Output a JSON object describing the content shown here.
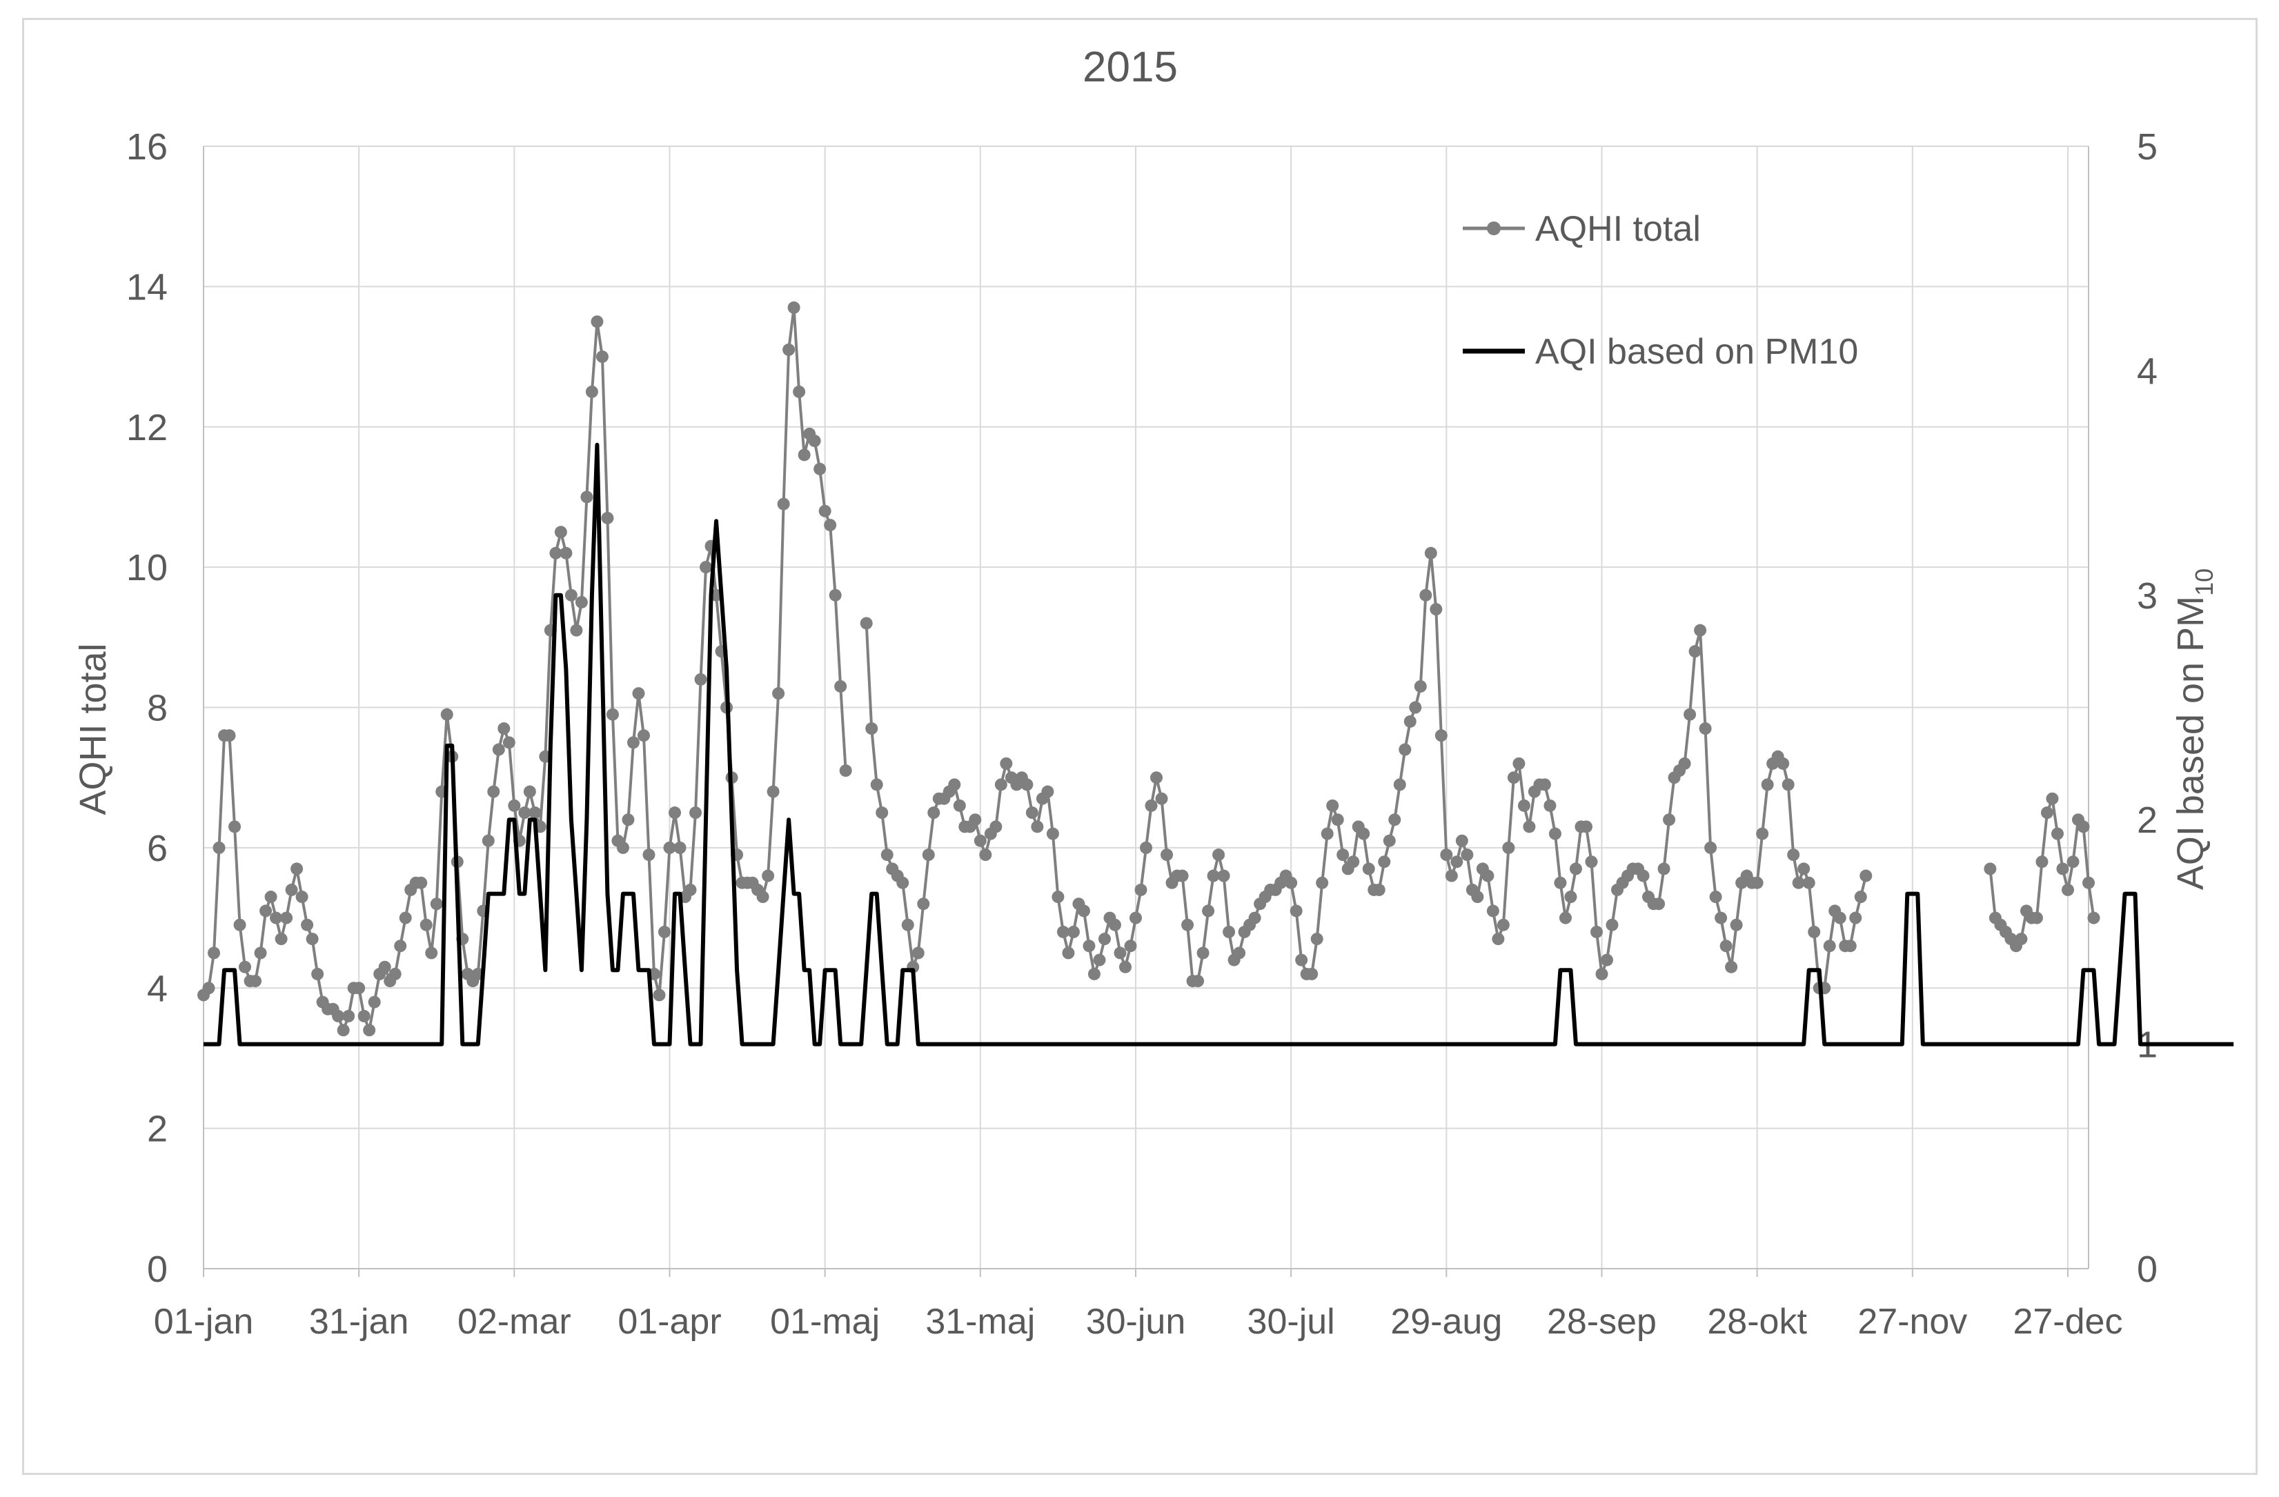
{
  "chart_data": {
    "type": "line",
    "title": "2015",
    "year": 2015,
    "x_tick_labels": [
      "01-jan",
      "31-jan",
      "02-mar",
      "01-apr",
      "01-maj",
      "31-maj",
      "30-jun",
      "30-jul",
      "29-aug",
      "28-sep",
      "28-okt",
      "27-nov",
      "27-dec"
    ],
    "x_tick_days": [
      0,
      30,
      60,
      90,
      120,
      150,
      180,
      210,
      240,
      270,
      300,
      330,
      360
    ],
    "xlim": [
      0,
      364
    ],
    "ylabel": "AQHI total",
    "ylim": [
      0,
      16
    ],
    "y_ticks": [
      0,
      2,
      4,
      6,
      8,
      10,
      12,
      14,
      16
    ],
    "y2label_main": "AQI based on PM",
    "y2label_sub": "10",
    "y2lim": [
      0,
      5
    ],
    "y2_ticks": [
      0,
      1,
      2,
      3,
      4,
      5
    ],
    "grid": true,
    "legend_position": "top-right",
    "series": [
      {
        "name": "AQHI total",
        "axis": "left",
        "color": "#7f7f7f",
        "marker": "circle",
        "x_day_start": 0,
        "values": [
          3.9,
          4.0,
          4.5,
          6.0,
          7.6,
          7.6,
          6.3,
          4.9,
          4.3,
          4.1,
          4.1,
          4.5,
          5.1,
          5.3,
          5.0,
          4.7,
          5.0,
          5.4,
          5.7,
          5.3,
          4.9,
          4.7,
          4.2,
          3.8,
          3.7,
          3.7,
          3.6,
          3.4,
          3.6,
          4.0,
          4.0,
          3.6,
          3.4,
          3.8,
          4.2,
          4.3,
          4.1,
          4.2,
          4.6,
          5.0,
          5.4,
          5.5,
          5.5,
          4.9,
          4.5,
          5.2,
          6.8,
          7.9,
          7.3,
          5.8,
          4.7,
          4.2,
          4.1,
          4.2,
          5.1,
          6.1,
          6.8,
          7.4,
          7.7,
          7.5,
          6.6,
          6.1,
          6.5,
          6.8,
          6.5,
          6.3,
          7.3,
          9.1,
          10.2,
          10.5,
          10.2,
          9.6,
          9.1,
          9.5,
          11.0,
          12.5,
          13.5,
          13.0,
          10.7,
          7.9,
          6.1,
          6.0,
          6.4,
          7.5,
          8.2,
          7.6,
          5.9,
          4.2,
          3.9,
          4.8,
          6.0,
          6.5,
          6.0,
          5.3,
          5.4,
          6.5,
          8.4,
          10.0,
          10.3,
          9.6,
          8.8,
          8.0,
          7.0,
          5.9,
          5.5,
          5.5,
          5.5,
          5.4,
          5.3,
          5.6,
          6.8,
          8.2,
          10.9,
          13.1,
          13.7,
          12.5,
          11.6,
          11.9,
          11.8,
          11.4,
          10.8,
          10.6,
          9.6,
          8.3,
          7.1,
          null,
          null,
          null,
          9.2,
          7.7,
          6.9,
          6.5,
          5.9,
          5.7,
          5.6,
          5.5,
          4.9,
          4.3,
          4.5,
          5.2,
          5.9,
          6.5,
          6.7,
          6.7,
          6.8,
          6.9,
          6.6,
          6.3,
          6.3,
          6.4,
          6.1,
          5.9,
          6.2,
          6.3,
          6.9,
          7.2,
          7.0,
          6.9,
          7.0,
          6.9,
          6.5,
          6.3,
          6.7,
          6.8,
          6.2,
          5.3,
          4.8,
          4.5,
          4.8,
          5.2,
          5.1,
          4.6,
          4.2,
          4.4,
          4.7,
          5.0,
          4.9,
          4.5,
          4.3,
          4.6,
          5.0,
          5.4,
          6.0,
          6.6,
          7.0,
          6.7,
          5.9,
          5.5,
          5.6,
          5.6,
          4.9,
          4.1,
          4.1,
          4.5,
          5.1,
          5.6,
          5.9,
          5.6,
          4.8,
          4.4,
          4.5,
          4.8,
          4.9,
          5.0,
          5.2,
          5.3,
          5.4,
          5.4,
          5.5,
          5.6,
          5.5,
          5.1,
          4.4,
          4.2,
          4.2,
          4.7,
          5.5,
          6.2,
          6.6,
          6.4,
          5.9,
          5.7,
          5.8,
          6.3,
          6.2,
          5.7,
          5.4,
          5.4,
          5.8,
          6.1,
          6.4,
          6.9,
          7.4,
          7.8,
          8.0,
          8.3,
          9.6,
          10.2,
          9.4,
          7.6,
          5.9,
          5.6,
          5.8,
          6.1,
          5.9,
          5.4,
          5.3,
          5.7,
          5.6,
          5.1,
          4.7,
          4.9,
          6.0,
          7.0,
          7.2,
          6.6,
          6.3,
          6.8,
          6.9,
          6.9,
          6.6,
          6.2,
          5.5,
          5.0,
          5.3,
          5.7,
          6.3,
          6.3,
          5.8,
          4.8,
          4.2,
          4.4,
          4.9,
          5.4,
          5.5,
          5.6,
          5.7,
          5.7,
          5.6,
          5.3,
          5.2,
          5.2,
          5.7,
          6.4,
          7.0,
          7.1,
          7.2,
          7.9,
          8.8,
          9.1,
          7.7,
          6.0,
          5.3,
          5.0,
          4.6,
          4.3,
          4.9,
          5.5,
          5.6,
          5.5,
          5.5,
          6.2,
          6.9,
          7.2,
          7.3,
          7.2,
          6.9,
          5.9,
          5.5,
          5.7,
          5.5,
          4.8,
          4.0,
          4.0,
          4.6,
          5.1,
          5.0,
          4.6,
          4.6,
          5.0,
          5.3,
          5.6,
          null,
          null,
          null,
          null,
          null,
          null,
          null,
          null,
          null,
          null,
          null,
          null,
          null,
          null,
          null,
          null,
          null,
          null,
          null,
          null,
          null,
          null,
          null,
          5.7,
          5.0,
          4.9,
          4.8,
          4.7,
          4.6,
          4.7,
          5.1,
          5.0,
          5.0,
          5.8,
          6.5,
          6.7,
          6.2,
          5.7,
          5.4,
          5.8,
          6.4,
          6.3,
          5.5,
          5.0
        ]
      },
      {
        "name": "AQI based on PM10",
        "axis": "right",
        "color": "#000000",
        "marker": "none",
        "x_day_start": 0,
        "values": [
          1,
          1,
          1,
          1,
          1.33,
          1.33,
          1.33,
          1,
          1,
          1,
          1,
          1,
          1,
          1,
          1,
          1,
          1,
          1,
          1,
          1,
          1,
          1,
          1,
          1,
          1,
          1,
          1,
          1,
          1,
          1,
          1,
          1,
          1,
          1,
          1,
          1,
          1,
          1,
          1,
          1,
          1,
          1,
          1,
          1,
          1,
          1,
          1,
          2.33,
          2.33,
          1.67,
          1,
          1,
          1,
          1,
          1.33,
          1.67,
          1.67,
          1.67,
          1.67,
          2,
          2,
          1.67,
          1.67,
          2,
          2,
          1.67,
          1.33,
          2.33,
          3,
          3,
          2.67,
          2,
          1.67,
          1.33,
          2,
          3,
          3.67,
          2.67,
          1.67,
          1.33,
          1.33,
          1.67,
          1.67,
          1.67,
          1.33,
          1.33,
          1.33,
          1,
          1,
          1,
          1,
          1.67,
          1.67,
          1.33,
          1,
          1,
          1,
          2,
          3,
          3.33,
          3,
          2.67,
          2,
          1.33,
          1,
          1,
          1,
          1,
          1,
          1,
          1,
          1.33,
          1.67,
          2,
          1.67,
          1.67,
          1.33,
          1.33,
          1,
          1,
          1.33,
          1.33,
          1.33,
          1,
          1,
          1,
          1,
          1,
          1.33,
          1.67,
          1.67,
          1.33,
          1,
          1,
          1,
          1.33,
          1.33,
          1.33,
          1,
          1,
          1,
          1,
          1,
          1,
          1,
          1,
          1,
          1,
          1,
          1,
          1,
          1,
          1,
          1,
          1,
          1,
          1,
          1,
          1,
          1,
          1,
          1,
          1,
          1,
          1,
          1,
          1,
          1,
          1,
          1,
          1,
          1,
          1,
          1,
          1,
          1,
          1,
          1,
          1,
          1,
          1,
          1,
          1,
          1,
          1,
          1,
          1,
          1,
          1,
          1,
          1,
          1,
          1,
          1,
          1,
          1,
          1,
          1,
          1,
          1,
          1,
          1,
          1,
          1,
          1,
          1,
          1,
          1,
          1,
          1,
          1,
          1,
          1,
          1,
          1,
          1,
          1,
          1,
          1,
          1,
          1,
          1,
          1,
          1,
          1,
          1,
          1,
          1,
          1,
          1,
          1,
          1,
          1,
          1,
          1,
          1,
          1,
          1,
          1,
          1,
          1,
          1,
          1,
          1,
          1,
          1,
          1,
          1,
          1,
          1,
          1,
          1,
          1,
          1,
          1,
          1,
          1,
          1,
          1,
          1,
          1,
          1,
          1.33,
          1.33,
          1.33,
          1,
          1,
          1,
          1,
          1,
          1,
          1,
          1,
          1,
          1,
          1,
          1,
          1,
          1,
          1,
          1,
          1,
          1,
          1,
          1,
          1,
          1,
          1,
          1,
          1,
          1,
          1,
          1,
          1,
          1,
          1,
          1,
          1,
          1,
          1,
          1,
          1,
          1,
          1,
          1,
          1,
          1,
          1,
          1,
          1,
          1.33,
          1.33,
          1.33,
          1,
          1,
          1,
          1,
          1,
          1,
          1,
          1,
          1,
          1,
          1,
          1,
          1,
          1,
          1,
          1,
          1.67,
          1.67,
          1.67,
          1,
          1,
          1,
          1,
          1,
          1,
          1,
          1,
          1,
          1,
          1,
          1,
          1,
          1,
          1,
          1,
          1,
          1,
          1,
          1,
          1,
          1,
          1,
          1,
          1,
          1,
          1,
          1,
          1,
          1,
          1,
          1.33,
          1.33,
          1.33,
          1,
          1,
          1,
          1,
          1.33,
          1.67,
          1.67,
          1.67,
          1,
          1,
          1,
          1,
          1,
          1,
          1,
          1,
          1,
          1,
          1,
          1,
          1,
          1,
          1,
          1,
          1,
          1,
          1
        ]
      }
    ]
  }
}
